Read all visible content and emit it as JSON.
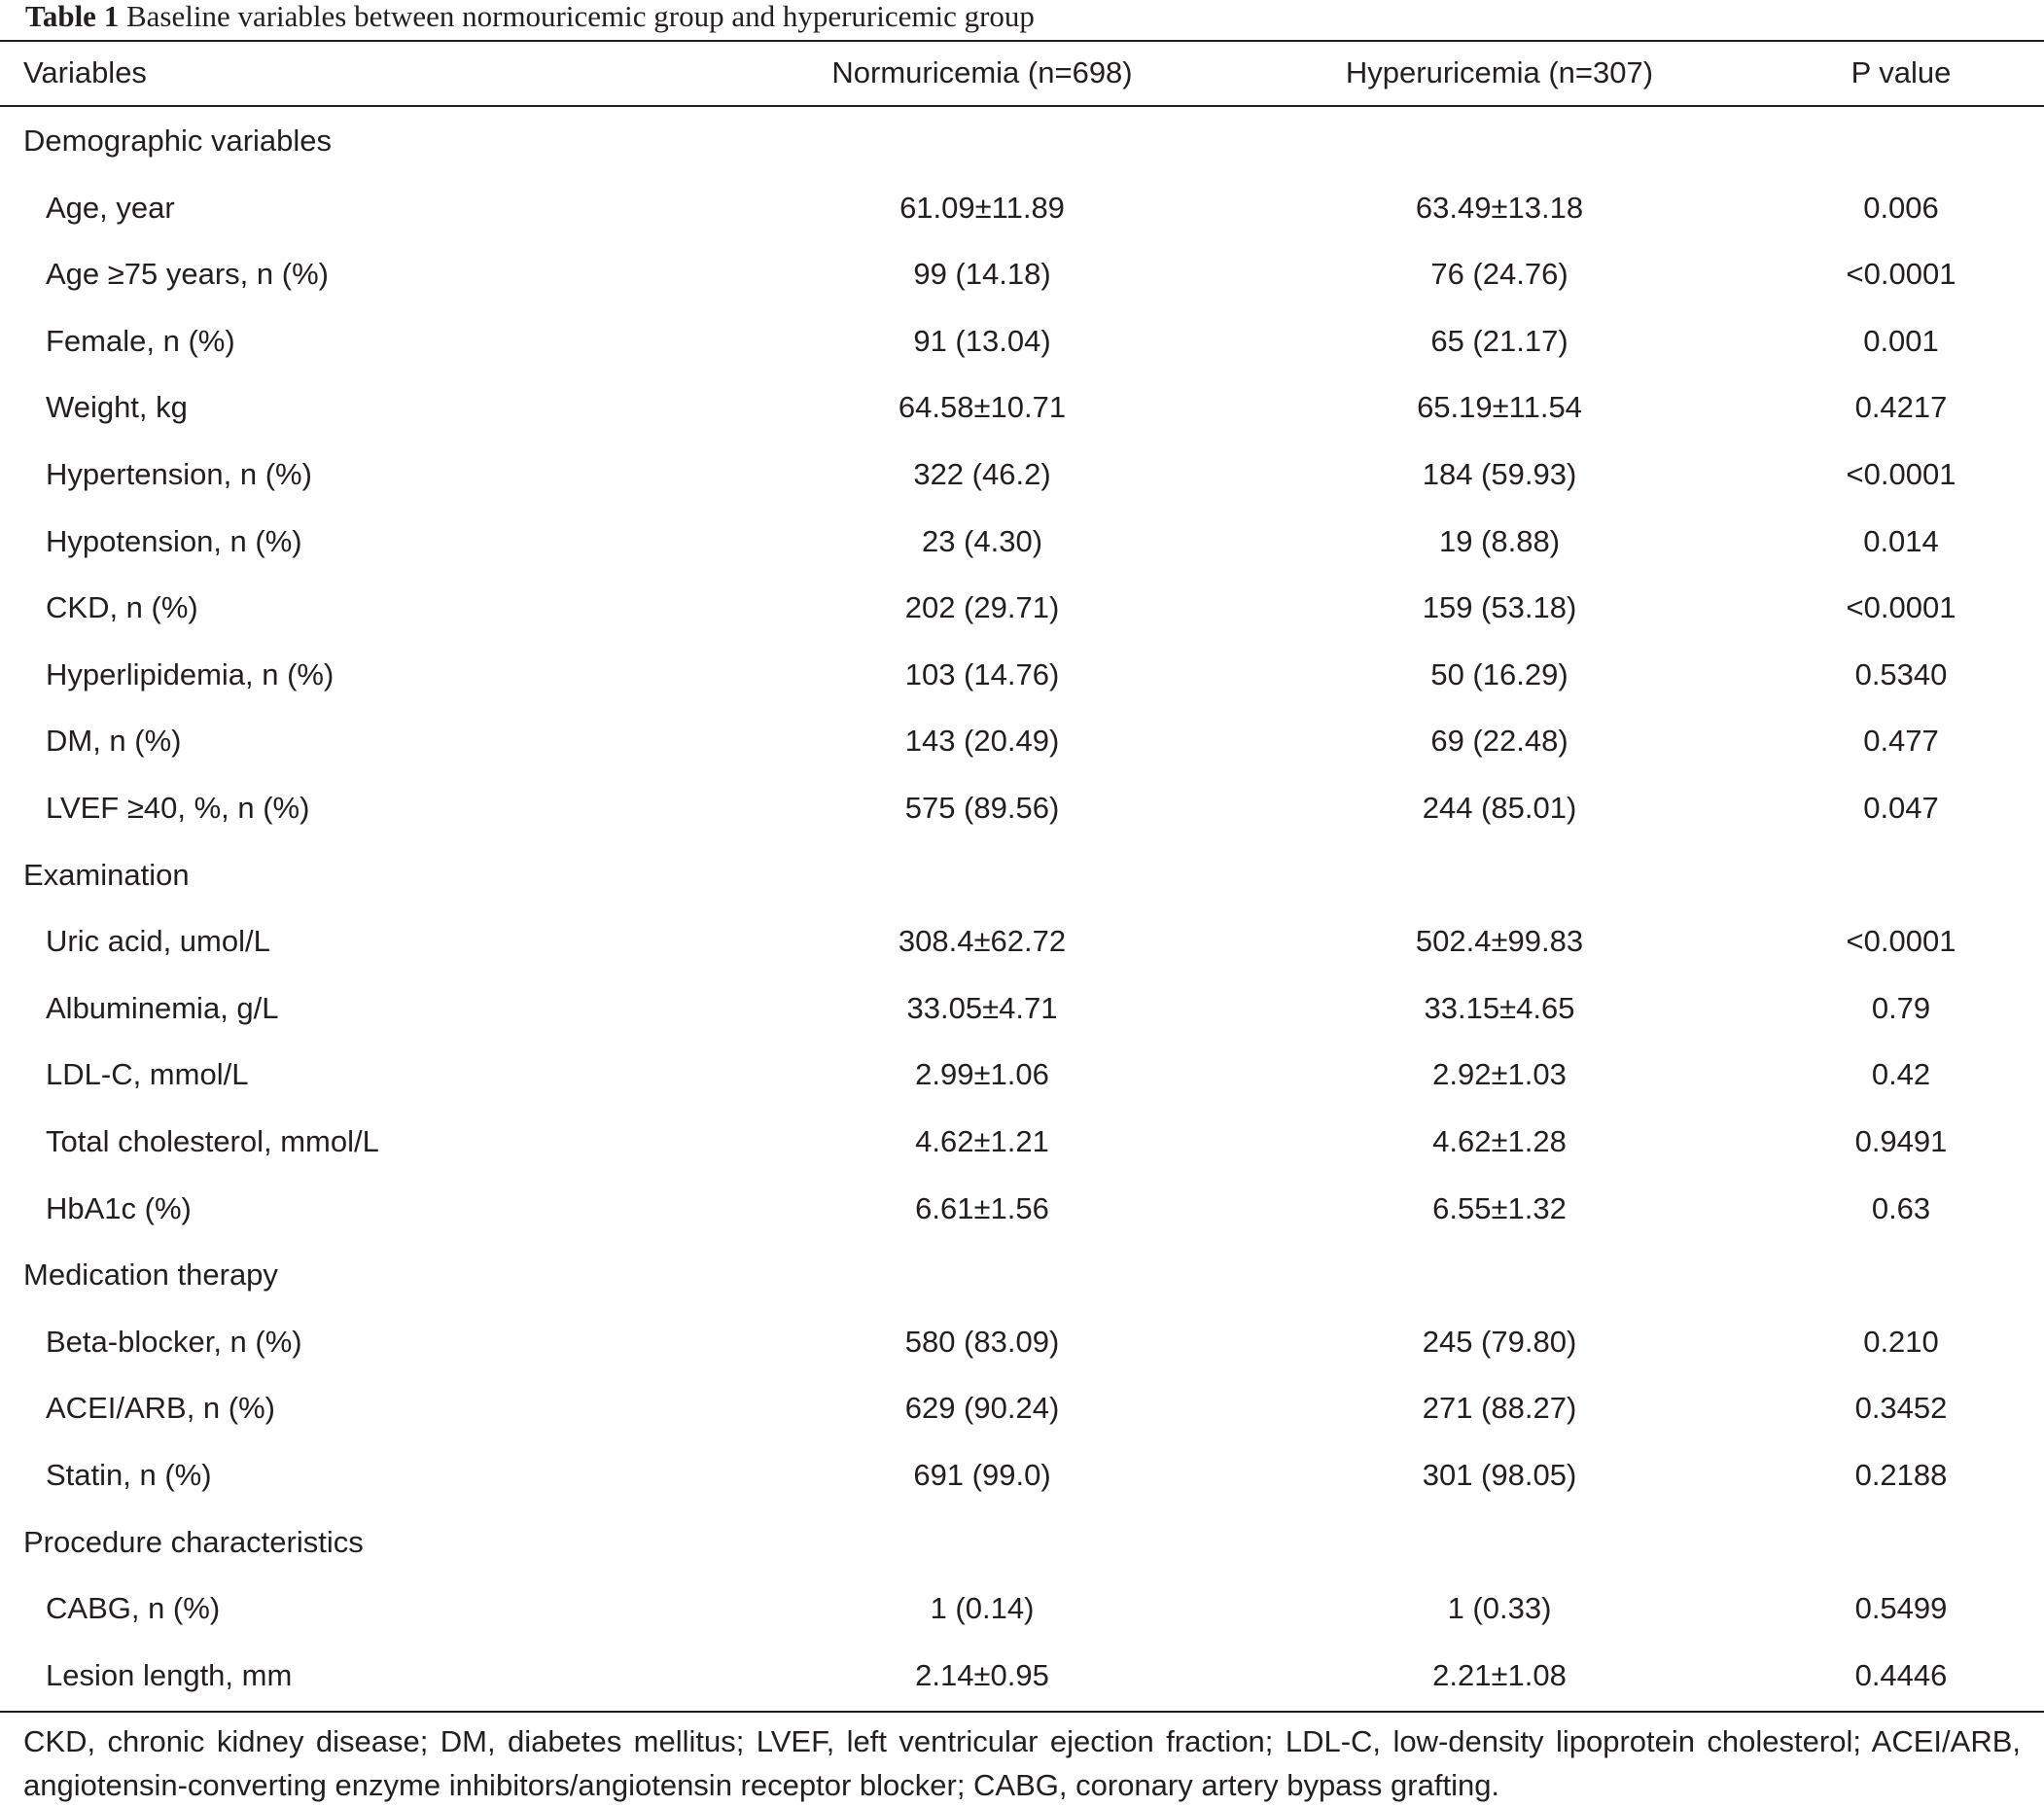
{
  "caption": {
    "label": "Table 1",
    "text": "Baseline variables between normouricemic group and hyperuricemic group"
  },
  "header": {
    "variables": "Variables",
    "normuricemia": "Normuricemia (n=698)",
    "hyperuricemia": "Hyperuricemia (n=307)",
    "p_value": "P value"
  },
  "rows": [
    {
      "type": "section",
      "label": "Demographic variables"
    },
    {
      "type": "item",
      "label": "Age, year",
      "normuricemia": "61.09±11.89",
      "hyperuricemia": "63.49±13.18",
      "p": "0.006"
    },
    {
      "type": "item",
      "label": "Age ≥75 years, n (%)",
      "normuricemia": "99 (14.18)",
      "hyperuricemia": "76 (24.76)",
      "p": "<0.0001"
    },
    {
      "type": "item",
      "label": "Female, n (%)",
      "normuricemia": "91 (13.04)",
      "hyperuricemia": "65 (21.17)",
      "p": "0.001"
    },
    {
      "type": "item",
      "label": "Weight, kg",
      "normuricemia": "64.58±10.71",
      "hyperuricemia": "65.19±11.54",
      "p": "0.4217"
    },
    {
      "type": "item",
      "label": "Hypertension, n (%)",
      "normuricemia": "322 (46.2)",
      "hyperuricemia": "184 (59.93)",
      "p": "<0.0001"
    },
    {
      "type": "item",
      "label": "Hypotension, n (%)",
      "normuricemia": "23 (4.30)",
      "hyperuricemia": "19 (8.88)",
      "p": "0.014"
    },
    {
      "type": "item",
      "label": "CKD, n (%)",
      "normuricemia": "202 (29.71)",
      "hyperuricemia": "159 (53.18)",
      "p": "<0.0001"
    },
    {
      "type": "item",
      "label": "Hyperlipidemia, n (%)",
      "normuricemia": "103 (14.76)",
      "hyperuricemia": "50 (16.29)",
      "p": "0.5340"
    },
    {
      "type": "item",
      "label": "DM, n (%)",
      "normuricemia": "143 (20.49)",
      "hyperuricemia": "69 (22.48)",
      "p": "0.477"
    },
    {
      "type": "item",
      "label": "LVEF ≥40, %, n (%)",
      "normuricemia": "575 (89.56)",
      "hyperuricemia": "244 (85.01)",
      "p": "0.047"
    },
    {
      "type": "section",
      "label": "Examination"
    },
    {
      "type": "item",
      "label": "Uric acid, umol/L",
      "normuricemia": "308.4±62.72",
      "hyperuricemia": "502.4±99.83",
      "p": "<0.0001"
    },
    {
      "type": "item",
      "label": "Albuminemia, g/L",
      "normuricemia": "33.05±4.71",
      "hyperuricemia": "33.15±4.65",
      "p": "0.79"
    },
    {
      "type": "item",
      "label": "LDL-C, mmol/L",
      "normuricemia": "2.99±1.06",
      "hyperuricemia": "2.92±1.03",
      "p": "0.42"
    },
    {
      "type": "item",
      "label": "Total cholesterol, mmol/L",
      "normuricemia": "4.62±1.21",
      "hyperuricemia": "4.62±1.28",
      "p": "0.9491"
    },
    {
      "type": "item",
      "label": "HbA1c (%)",
      "normuricemia": "6.61±1.56",
      "hyperuricemia": "6.55±1.32",
      "p": "0.63"
    },
    {
      "type": "section",
      "label": "Medication therapy"
    },
    {
      "type": "item",
      "label": "Beta-blocker, n (%)",
      "normuricemia": "580 (83.09)",
      "hyperuricemia": "245 (79.80)",
      "p": "0.210"
    },
    {
      "type": "item",
      "label": "ACEI/ARB, n (%)",
      "normuricemia": "629 (90.24)",
      "hyperuricemia": "271 (88.27)",
      "p": "0.3452"
    },
    {
      "type": "item",
      "label": "Statin, n (%)",
      "normuricemia": "691 (99.0)",
      "hyperuricemia": "301 (98.05)",
      "p": "0.2188"
    },
    {
      "type": "section",
      "label": "Procedure characteristics"
    },
    {
      "type": "item",
      "label": "CABG, n (%)",
      "normuricemia": "1 (0.14)",
      "hyperuricemia": "1 (0.33)",
      "p": "0.5499"
    },
    {
      "type": "item",
      "label": "Lesion length, mm",
      "normuricemia": "2.14±0.95",
      "hyperuricemia": "2.21±1.08",
      "p": "0.4446"
    }
  ],
  "footnote": "CKD, chronic kidney disease; DM, diabetes mellitus; LVEF, left ventricular ejection fraction; LDL-C, low-density lipoprotein cholesterol; ACEI/ARB, angiotensin-converting enzyme inhibitors/angiotensin receptor blocker; CABG, coronary artery bypass grafting."
}
